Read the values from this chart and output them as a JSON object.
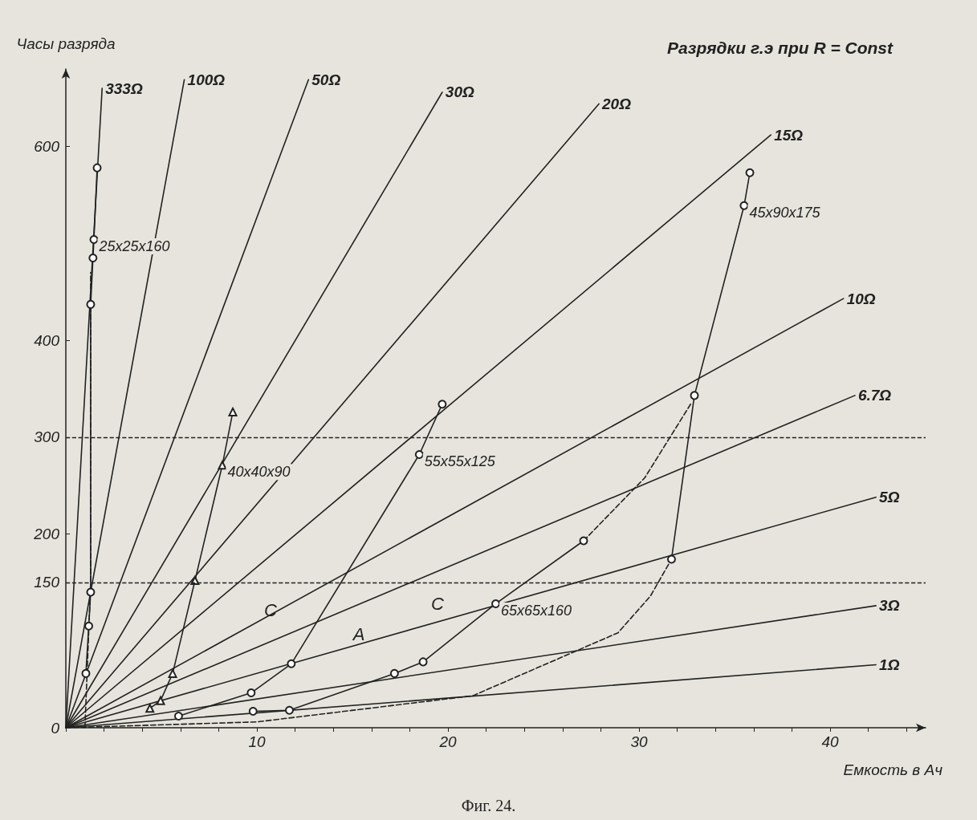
{
  "chart_data": {
    "type": "line",
    "title": "Разрядки г.э при R = Const",
    "xlabel": "Емкость в Ач",
    "ylabel": "Часы разряда",
    "xlim": [
      0,
      45
    ],
    "ylim": [
      0,
      680
    ],
    "xticks": [
      {
        "value": 0,
        "label": null
      },
      {
        "value": 2,
        "label": null
      },
      {
        "value": 4,
        "label": null
      },
      {
        "value": 6,
        "label": null
      },
      {
        "value": 8,
        "label": null
      },
      10,
      {
        "value": 12,
        "label": null
      },
      {
        "value": 14,
        "label": null
      },
      {
        "value": 16,
        "label": null
      },
      {
        "value": 18,
        "label": null
      },
      20,
      {
        "value": 22,
        "label": null
      },
      {
        "value": 24,
        "label": null
      },
      {
        "value": 26,
        "label": null
      },
      {
        "value": 28,
        "label": null
      },
      30,
      {
        "value": 32,
        "label": null
      },
      {
        "value": 34,
        "label": null
      },
      {
        "value": 36,
        "label": null
      },
      {
        "value": 38,
        "label": null
      },
      40,
      {
        "value": 42,
        "label": null
      },
      {
        "value": 44,
        "label": null
      }
    ],
    "yticks": [
      0,
      150,
      200,
      300,
      400,
      600
    ],
    "grid": false,
    "legend": false,
    "ref_lines": [
      {
        "axis": "y",
        "value": 300,
        "line_style": "dashed"
      },
      {
        "axis": "y",
        "value": 150,
        "line_style": "dashed"
      }
    ],
    "series": [
      {
        "name": "333Ω",
        "color": "#222222",
        "marker": "none",
        "x": [
          0,
          1.9
        ],
        "values": [
          0,
          660
        ]
      },
      {
        "name": "100Ω",
        "color": "#222222",
        "marker": "none",
        "x": [
          0,
          6.2
        ],
        "values": [
          0,
          669
        ]
      },
      {
        "name": "50Ω",
        "color": "#222222",
        "marker": "none",
        "x": [
          0,
          12.7
        ],
        "values": [
          0,
          669
        ]
      },
      {
        "name": "30Ω",
        "color": "#222222",
        "marker": "none",
        "x": [
          0,
          19.7
        ],
        "values": [
          0,
          656
        ]
      },
      {
        "name": "20Ω",
        "color": "#222222",
        "marker": "none",
        "x": [
          0,
          27.9
        ],
        "values": [
          0,
          644
        ]
      },
      {
        "name": "15Ω",
        "color": "#222222",
        "marker": "none",
        "x": [
          0,
          36.9
        ],
        "values": [
          0,
          612
        ]
      },
      {
        "name": "10Ω",
        "color": "#222222",
        "marker": "none",
        "x": [
          0,
          40.7
        ],
        "values": [
          0,
          443
        ]
      },
      {
        "name": "6.7Ω",
        "color": "#222222",
        "marker": "none",
        "x": [
          0,
          41.3
        ],
        "values": [
          0,
          343
        ]
      },
      {
        "name": "5Ω",
        "color": "#222222",
        "marker": "none",
        "x": [
          0,
          42.4
        ],
        "values": [
          0,
          238
        ]
      },
      {
        "name": "3Ω",
        "color": "#222222",
        "marker": "none",
        "x": [
          0,
          42.4
        ],
        "values": [
          0,
          126
        ]
      },
      {
        "name": "1Ω",
        "color": "#222222",
        "marker": "none",
        "x": [
          0,
          42.4
        ],
        "values": [
          0,
          65
        ]
      },
      {
        "name": "25x25x160",
        "color": "#222222",
        "marker": "circle",
        "x": [
          1.05,
          1.2,
          1.3,
          1.3,
          1.42,
          1.47,
          1.64
        ],
        "values": [
          56,
          105,
          140,
          437,
          485,
          504,
          578
        ]
      },
      {
        "color": "#222222",
        "marker": "none",
        "line_style": "dashed",
        "x": [
          1.0,
          1.3,
          1.3
        ],
        "values": [
          0,
          150,
          470
        ]
      },
      {
        "name": "40x40x90",
        "color": "#222222",
        "marker": "triangle",
        "x": [
          4.4,
          4.96,
          5.59,
          6.76,
          8.19,
          8.74
        ],
        "values": [
          20,
          28,
          56,
          152,
          271,
          326
        ]
      },
      {
        "name": "55x55x125",
        "color": "#222222",
        "marker": "circle",
        "x": [
          5.9,
          9.7,
          11.8,
          18.5,
          19.7
        ],
        "values": [
          12,
          36,
          66,
          282,
          334
        ]
      },
      {
        "name": "65x65x160",
        "color": "#222222",
        "marker": "circle",
        "x": [
          9.8,
          11.7,
          17.2,
          18.7,
          22.5,
          27.1
        ],
        "values": [
          17,
          18,
          56,
          68,
          128,
          193
        ]
      },
      {
        "color": "#222222",
        "marker": "none",
        "line_style": "dashed",
        "x": [
          27.1,
          30.3,
          32.7
        ],
        "values": [
          193,
          258,
          334
        ]
      },
      {
        "color": "#222222",
        "marker": "none",
        "line_style": "dashed",
        "x": [
          0,
          10,
          21.3,
          28.9,
          30.6,
          31.7
        ],
        "values": [
          0,
          6,
          33,
          98,
          136,
          174
        ]
      },
      {
        "name": "45x90x175",
        "color": "#222222",
        "marker": "circle",
        "x": [
          31.7,
          32.9,
          35.5,
          35.8
        ],
        "values": [
          174,
          343,
          539,
          573
        ]
      }
    ],
    "annotations": [
      "C",
      "A",
      "C",
      "Фиг. 24."
    ]
  }
}
